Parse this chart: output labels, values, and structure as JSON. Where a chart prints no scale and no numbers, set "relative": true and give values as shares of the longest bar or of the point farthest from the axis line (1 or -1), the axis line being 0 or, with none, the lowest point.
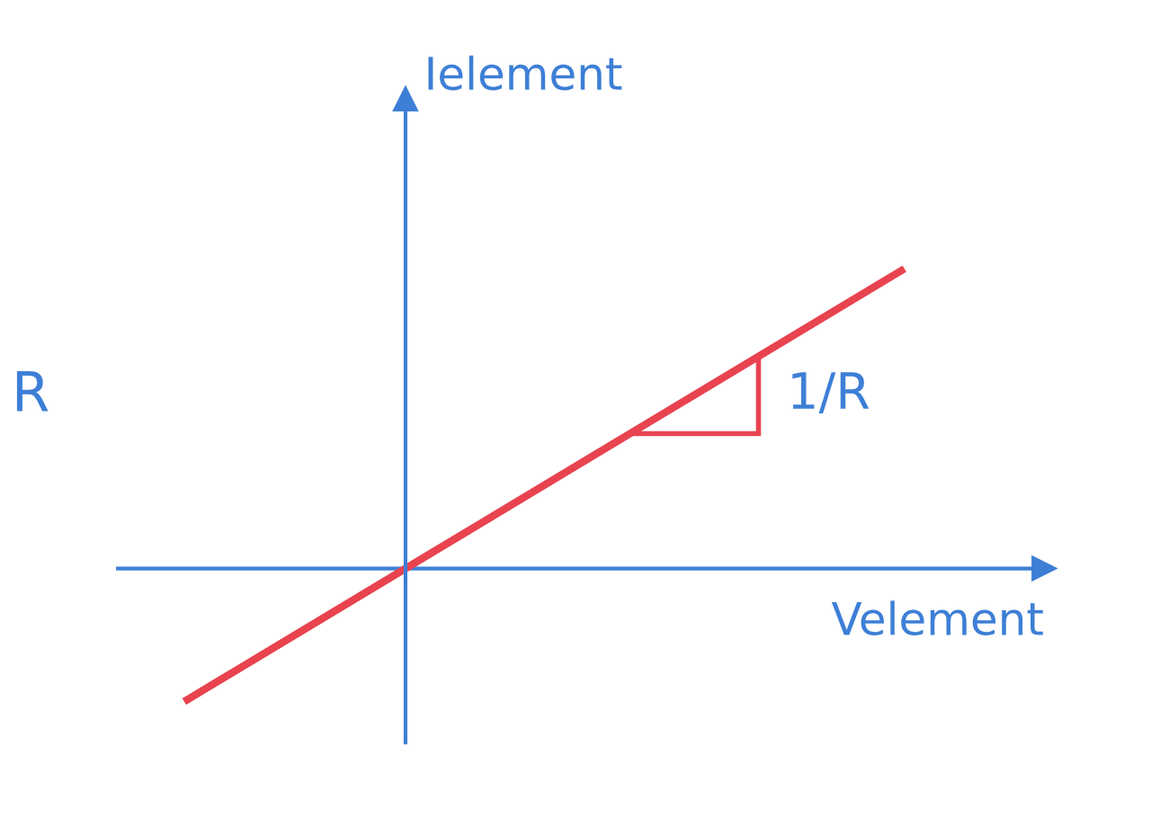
{
  "chart_data": {
    "type": "line",
    "relative": true,
    "xlabel": "Velement",
    "ylabel": "Ielement",
    "categories": [
      null,
      null,
      null,
      null
    ],
    "series": [
      {
        "color": "#e8434f",
        "values": [
          -0.44,
          0.04,
          0.52,
          1
        ]
      }
    ],
    "annotations": [
      "1/R",
      "R"
    ],
    "ref_lines": [
      {
        "axis": "y",
        "value": 0,
        "color": "#3d7fd6",
        "line_style": "solid"
      }
    ],
    "marker": "none",
    "line_style": "solid"
  }
}
